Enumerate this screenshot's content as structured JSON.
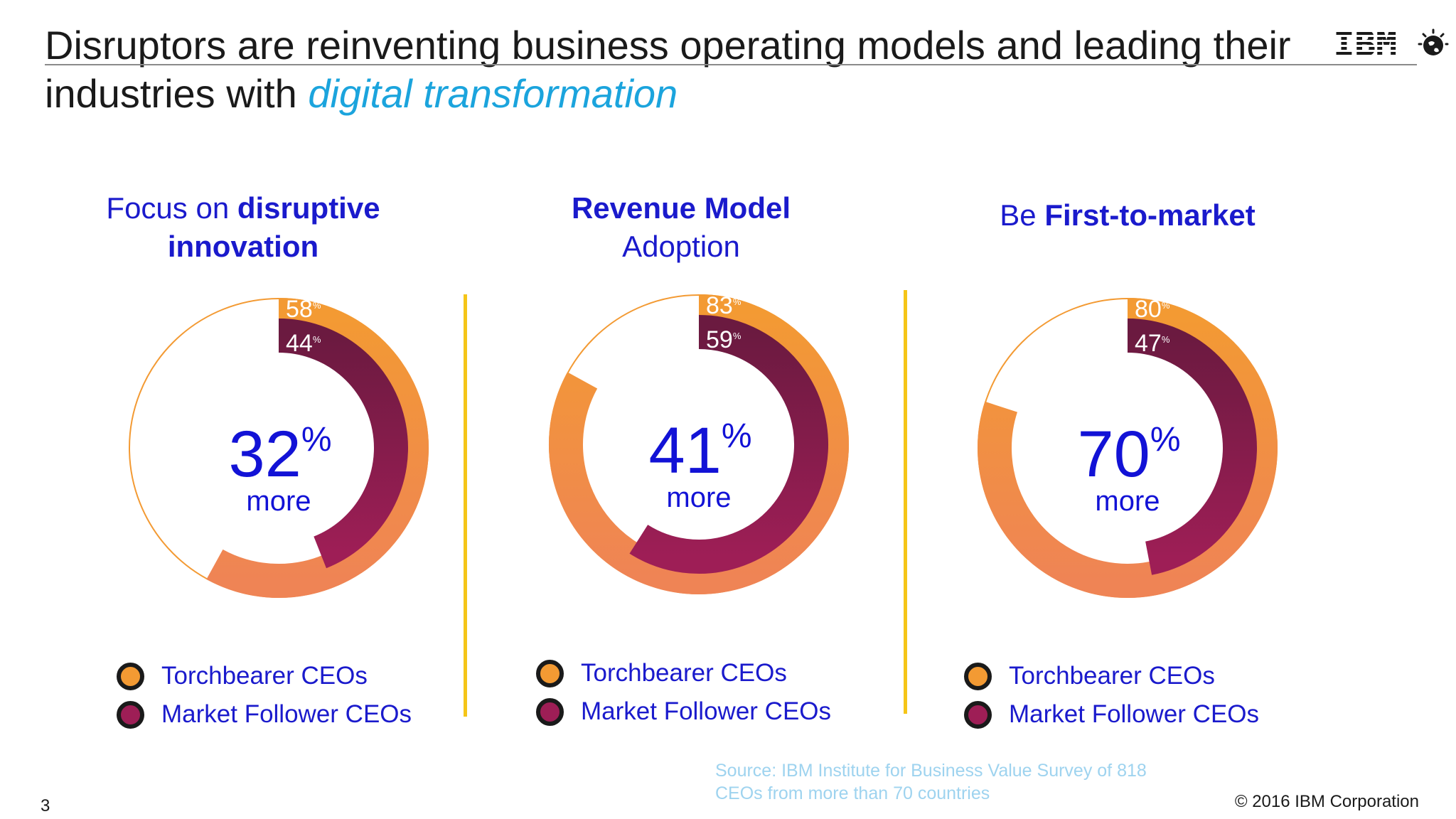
{
  "slide": {
    "title_main": "Disruptors are reinventing business operating models and leading their industries with",
    "title_accent": "digital transformation",
    "logo_text": "IBM",
    "source_line1": "Source: IBM Institute for Business Value Survey of 818",
    "source_line2": "CEOs from more than 70 countries",
    "page_number": "3",
    "copyright": "© 2016 IBM Corporation"
  },
  "colors": {
    "torchbearer_orange": "#F39A33",
    "torchbearer_orange_light": "#EF8455",
    "follower_magenta": "#9E1E56",
    "follower_dark": "#6B1A40",
    "title_blue": "#1A1ACC",
    "number_blue": "#1212D6",
    "accent_cyan": "#1BA4DD",
    "divider_yellow": "#F5C518",
    "source_light_blue": "#9ED3EF"
  },
  "chart_data": [
    {
      "type": "donut",
      "title_parts": [
        "Focus on ",
        "disruptive",
        "innovation"
      ],
      "series": [
        {
          "name": "Torchbearer CEOs",
          "value": 58,
          "value_label": "58",
          "unit": "%"
        },
        {
          "name": "Market Follower CEOs",
          "value": 44,
          "value_label": "44",
          "unit": "%"
        }
      ],
      "center_value": "32",
      "center_unit": "%",
      "center_text": "more"
    },
    {
      "type": "donut",
      "title_parts": [
        "Revenue Model",
        "Adoption"
      ],
      "series": [
        {
          "name": "Torchbearer CEOs",
          "value": 83,
          "value_label": "83",
          "unit": "%"
        },
        {
          "name": "Market Follower CEOs",
          "value": 59,
          "value_label": "59",
          "unit": "%"
        }
      ],
      "center_value": "41",
      "center_unit": "%",
      "center_text": "more"
    },
    {
      "type": "donut",
      "title_parts": [
        "Be ",
        "First-to-market"
      ],
      "series": [
        {
          "name": "Torchbearer CEOs",
          "value": 80,
          "value_label": "80",
          "unit": "%"
        },
        {
          "name": "Market Follower CEOs",
          "value": 47,
          "value_label": "47",
          "unit": "%"
        }
      ],
      "center_value": "70",
      "center_unit": "%",
      "center_text": "more"
    }
  ]
}
